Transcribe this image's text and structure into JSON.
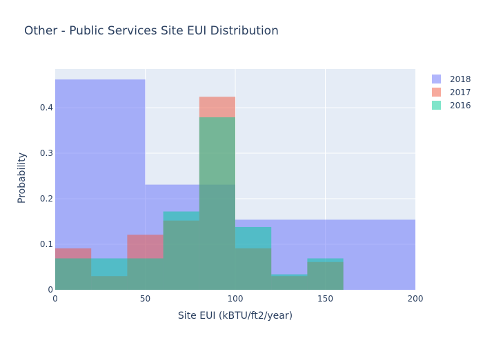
{
  "chart_data": {
    "type": "bar",
    "title": "Other - Public Services Site EUI Distribution",
    "xlabel": "Site EUI (kBTU/ft2/year)",
    "ylabel": "Probability",
    "xlim": [
      0,
      200
    ],
    "ylim": [
      0,
      0.485
    ],
    "x_ticks": [
      0,
      50,
      100,
      150,
      200
    ],
    "y_ticks": [
      0,
      0.1,
      0.2,
      0.3,
      0.4
    ],
    "y_tick_labels": [
      "0",
      "0.1",
      "0.2",
      "0.3",
      "0.4"
    ],
    "x_tick_labels": [
      "0",
      "50",
      "100",
      "150",
      "200"
    ],
    "grid": true,
    "legend_placement": "top-right",
    "barmode": "overlay",
    "series": [
      {
        "name": "2018",
        "color": "#636efa",
        "bins": [
          [
            0,
            50
          ],
          [
            50,
            100
          ],
          [
            100,
            200
          ]
        ],
        "values": [
          0.462,
          0.231,
          0.154
        ]
      },
      {
        "name": "2017",
        "color": "#ef553b",
        "bins": [
          [
            0,
            20
          ],
          [
            20,
            40
          ],
          [
            40,
            60
          ],
          [
            60,
            80
          ],
          [
            80,
            100
          ],
          [
            100,
            120
          ],
          [
            120,
            140
          ],
          [
            140,
            160
          ]
        ],
        "values": [
          0.091,
          0.03,
          0.121,
          0.152,
          0.424,
          0.091,
          0.03,
          0.061
        ]
      },
      {
        "name": "2016",
        "color": "#00cc96",
        "bins": [
          [
            0,
            20
          ],
          [
            20,
            40
          ],
          [
            40,
            60
          ],
          [
            60,
            80
          ],
          [
            80,
            100
          ],
          [
            100,
            120
          ],
          [
            120,
            140
          ],
          [
            140,
            160
          ]
        ],
        "values": [
          0.069,
          0.069,
          0.069,
          0.172,
          0.379,
          0.138,
          0.034,
          0.069
        ]
      }
    ]
  }
}
